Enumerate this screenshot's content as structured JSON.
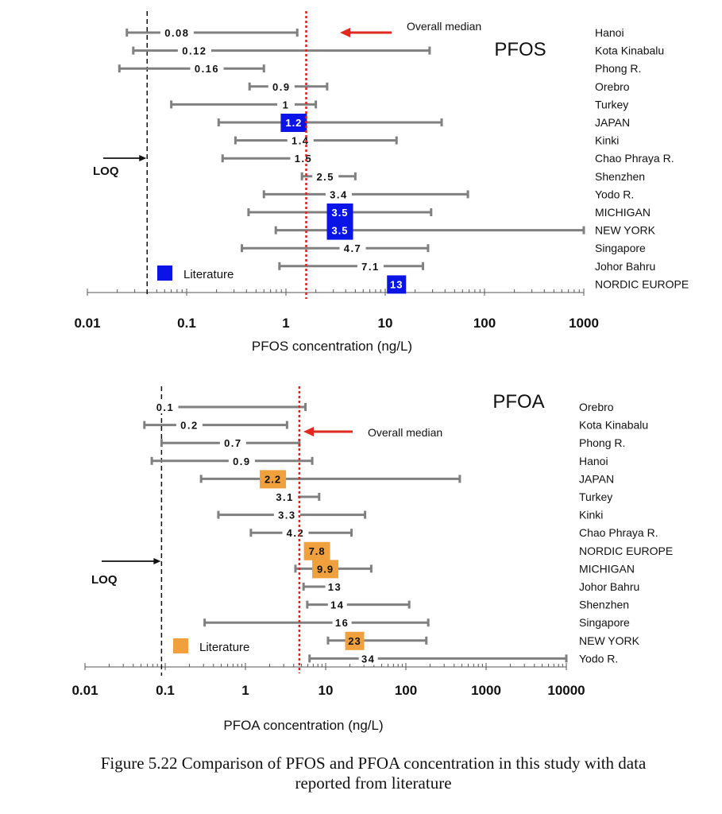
{
  "caption": {
    "line1": "Figure 5.22  Comparison of PFOS and PFOA concentration in this study with data",
    "line2": "reported from literature"
  },
  "chart_data": [
    {
      "type": "range-dot",
      "title": "PFOS",
      "xlabel": "PFOS concentration (ng/L)",
      "xscale": "log",
      "xlim": [
        0.01,
        1000
      ],
      "xticks": [
        "0.01",
        "0.1",
        "1",
        "10",
        "100",
        "1000"
      ],
      "loq": 0.04,
      "loq_label": "LOQ",
      "overall_median": 1.6,
      "median_label": "Overall median",
      "legend": {
        "label": "Literature",
        "color": "#0a14e6",
        "position": "bottom-left"
      },
      "rows": [
        {
          "site": "Hanoi",
          "median": 0.08,
          "min": 0.025,
          "max": 1.3,
          "literature": false,
          "label": "0.08"
        },
        {
          "site": "Kota Kinabalu",
          "median": 0.12,
          "min": 0.029,
          "max": 28,
          "literature": false,
          "label": "0.12"
        },
        {
          "site": "Phong R.",
          "median": 0.16,
          "min": 0.021,
          "max": 0.6,
          "literature": false,
          "label": "0.16"
        },
        {
          "site": "Orebro",
          "median": 0.9,
          "min": 0.43,
          "max": 2.6,
          "literature": false,
          "label": "0.9"
        },
        {
          "site": "Turkey",
          "median": 1,
          "min": 0.07,
          "max": 2.0,
          "literature": false,
          "label": "1"
        },
        {
          "site": "JAPAN",
          "median": 1.2,
          "min": 0.21,
          "max": 37,
          "literature": true,
          "label": "1.2"
        },
        {
          "site": "Kinki",
          "median": 1.4,
          "min": 0.31,
          "max": 13,
          "literature": false,
          "label": "1.4"
        },
        {
          "site": "Chao Phraya R.",
          "median": 1.5,
          "min": 0.23,
          "max": 1.6,
          "literature": false,
          "label": "1.5"
        },
        {
          "site": "Shenzhen",
          "median": 2.5,
          "min": 1.45,
          "max": 5,
          "literature": false,
          "label": "2.5"
        },
        {
          "site": "Yodo R.",
          "median": 3.4,
          "min": 0.6,
          "max": 68,
          "literature": false,
          "label": "3.4"
        },
        {
          "site": "MICHIGAN",
          "median": 3.5,
          "min": 0.42,
          "max": 29,
          "literature": true,
          "label": "3.5"
        },
        {
          "site": "NEW YORK",
          "median": 3.5,
          "min": 0.79,
          "max": 1000,
          "literature": true,
          "label": "3.5"
        },
        {
          "site": "Singapore",
          "median": 4.7,
          "min": 0.36,
          "max": 27,
          "literature": false,
          "label": "4.7"
        },
        {
          "site": "Johor Bahru",
          "median": 7.1,
          "min": 0.86,
          "max": 24,
          "literature": false,
          "label": "7.1"
        },
        {
          "site": "NORDIC EUROPE",
          "median": 13,
          "min": 13,
          "max": 13,
          "literature": true,
          "label": "13"
        }
      ]
    },
    {
      "type": "range-dot",
      "title": "PFOA",
      "xlabel": "PFOA concentration (ng/L)",
      "xscale": "log",
      "xlim": [
        0.01,
        10000
      ],
      "xticks": [
        "0.01",
        "0.1",
        "1",
        "10",
        "100",
        "1000",
        "10000"
      ],
      "loq": 0.09,
      "loq_label": "LOQ",
      "overall_median": 4.7,
      "median_label": "Overall median",
      "legend": {
        "label": "Literature",
        "color": "#f0a03c",
        "position": "bottom-left"
      },
      "rows": [
        {
          "site": "Orebro",
          "median": 0.1,
          "min": 0.1,
          "max": 5.6,
          "literature": false,
          "label": "0.1"
        },
        {
          "site": "Kota Kinabalu",
          "median": 0.2,
          "min": 0.055,
          "max": 3.3,
          "literature": false,
          "label": "0.2"
        },
        {
          "site": "Phong R.",
          "median": 0.7,
          "min": 0.09,
          "max": 4.7,
          "literature": false,
          "label": "0.7"
        },
        {
          "site": "Hanoi",
          "median": 0.9,
          "min": 0.068,
          "max": 6.8,
          "literature": false,
          "label": "0.9"
        },
        {
          "site": "JAPAN",
          "median": 2.2,
          "min": 0.28,
          "max": 470,
          "literature": true,
          "label": "2.2"
        },
        {
          "site": "Turkey",
          "median": 3.1,
          "min": 2.8,
          "max": 8.3,
          "literature": false,
          "label": "3.1"
        },
        {
          "site": "Kinki",
          "median": 3.3,
          "min": 0.46,
          "max": 31,
          "literature": false,
          "label": "3.3"
        },
        {
          "site": "Chao Phraya R.",
          "median": 4.2,
          "min": 1.17,
          "max": 21,
          "literature": false,
          "label": "4.2"
        },
        {
          "site": "NORDIC EUROPE",
          "median": 7.8,
          "min": 7.8,
          "max": 7.8,
          "literature": true,
          "label": "7.8"
        },
        {
          "site": "MICHIGAN",
          "median": 9.9,
          "min": 4.2,
          "max": 37,
          "literature": true,
          "label": "9.9"
        },
        {
          "site": "Johor Bahru",
          "median": 13,
          "min": 5.3,
          "max": 14,
          "literature": false,
          "label": "13"
        },
        {
          "site": "Shenzhen",
          "median": 14,
          "min": 5.9,
          "max": 110,
          "literature": false,
          "label": "14"
        },
        {
          "site": "Singapore",
          "median": 16,
          "min": 0.31,
          "max": 190,
          "literature": false,
          "label": "16"
        },
        {
          "site": "NEW YORK",
          "median": 23,
          "min": 10.7,
          "max": 180,
          "literature": true,
          "label": "23"
        },
        {
          "site": "Yodo R.",
          "median": 34,
          "min": 6.3,
          "max": 10000,
          "literature": false,
          "label": "34"
        }
      ]
    }
  ]
}
